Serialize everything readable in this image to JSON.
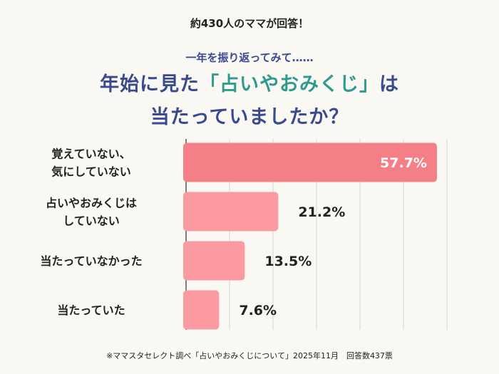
{
  "header": {
    "top_note": "約430人のママが回答！",
    "lead": "一年を振り返ってみて……",
    "title_part1": "年始に見た",
    "title_highlight": "「占いやおみくじ」",
    "title_part2": "は",
    "title_line2": "当たっていましたか？"
  },
  "colors": {
    "bar_top": "#f47f87",
    "bar_other": "#fb9aa0",
    "title": "#3a4a8f",
    "highlight": "#2f9b8f",
    "background": "#faf8f2"
  },
  "chart_data": {
    "type": "bar",
    "orientation": "horizontal",
    "categories": [
      [
        "覚えていない、",
        "気にしていない"
      ],
      [
        "占いやおみくじは",
        "していない"
      ],
      [
        "当たっていなかった"
      ],
      [
        "当たっていた"
      ]
    ],
    "values": [
      57.7,
      21.2,
      13.5,
      7.6
    ],
    "value_labels": [
      "57.7%",
      "21.2%",
      "13.5%",
      "7.6%"
    ],
    "unit": "%",
    "xlim": [
      0,
      60
    ],
    "grid": true
  },
  "footnote": "※ママスタセレクト調べ「占いやおみくじについて」2025年11月　回答数437票"
}
